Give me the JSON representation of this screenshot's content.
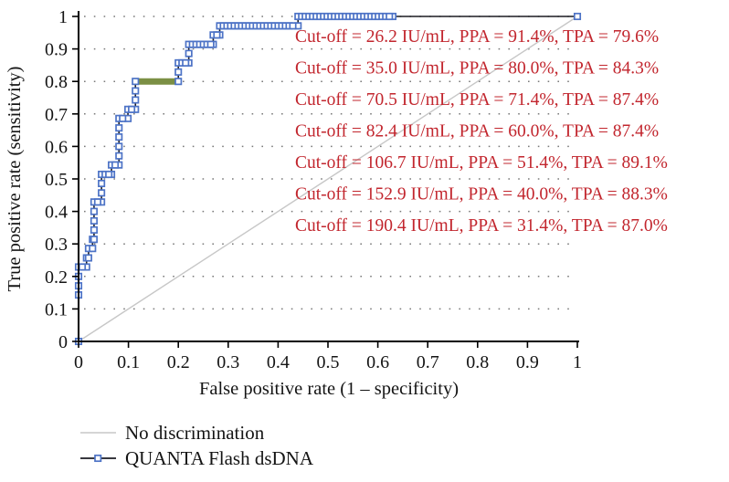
{
  "chart_data": {
    "type": "line",
    "title": "",
    "xlabel": "False positive rate (1 – specificity)",
    "ylabel": "True positive rate (sensitivity)",
    "xlim": [
      0,
      1
    ],
    "ylim": [
      0,
      1
    ],
    "grid": "horizontal-dotted",
    "legend_position": "bottom-left",
    "xticks": {
      "values": [
        0,
        0.1,
        0.2,
        0.3,
        0.4,
        0.5,
        0.6,
        0.7,
        0.8,
        0.9,
        1
      ],
      "labels": [
        "0",
        "0.1",
        "0.2",
        "0.3",
        "0.4",
        "0.5",
        "0.6",
        "0.7",
        "0.8",
        "0.9",
        "1"
      ]
    },
    "yticks": {
      "values": [
        0,
        0.1,
        0.2,
        0.3,
        0.4,
        0.5,
        0.6,
        0.7,
        0.8,
        0.9,
        1
      ],
      "labels": [
        "0",
        "0.1",
        "0.2",
        "0.3",
        "0.4",
        "0.5",
        "0.6",
        "0.7",
        "0.8",
        "0.9",
        "1"
      ]
    },
    "series": [
      {
        "name": "No discrimination",
        "type": "line",
        "color": "#c7c7c7",
        "points": [
          [
            0,
            0
          ],
          [
            1,
            1
          ]
        ]
      },
      {
        "name": "QUANTA Flash dsDNA",
        "type": "step-line",
        "line_color": "#1b1c22",
        "marker": "square",
        "marker_color": "#4d73c6",
        "marker_fill": "#ffffff",
        "points": [
          [
            0,
            0
          ],
          [
            0,
            0.143
          ],
          [
            0,
            0.171
          ],
          [
            0,
            0.2
          ],
          [
            0,
            0.229
          ],
          [
            0.016,
            0.229
          ],
          [
            0.016,
            0.257
          ],
          [
            0.02,
            0.257
          ],
          [
            0.02,
            0.286
          ],
          [
            0.028,
            0.286
          ],
          [
            0.028,
            0.314
          ],
          [
            0.031,
            0.314
          ],
          [
            0.031,
            0.343
          ],
          [
            0.031,
            0.371
          ],
          [
            0.031,
            0.4
          ],
          [
            0.031,
            0.429
          ],
          [
            0.046,
            0.429
          ],
          [
            0.046,
            0.457
          ],
          [
            0.046,
            0.486
          ],
          [
            0.046,
            0.514
          ],
          [
            0.066,
            0.514
          ],
          [
            0.066,
            0.543
          ],
          [
            0.081,
            0.543
          ],
          [
            0.081,
            0.571
          ],
          [
            0.081,
            0.6
          ],
          [
            0.081,
            0.629
          ],
          [
            0.081,
            0.657
          ],
          [
            0.081,
            0.686
          ],
          [
            0.099,
            0.686
          ],
          [
            0.099,
            0.714
          ],
          [
            0.114,
            0.714
          ],
          [
            0.114,
            0.743
          ],
          [
            0.114,
            0.771
          ],
          [
            0.114,
            0.8
          ],
          [
            0.2,
            0.8
          ],
          [
            0.2,
            0.829
          ],
          [
            0.2,
            0.857
          ],
          [
            0.221,
            0.857
          ],
          [
            0.221,
            0.886
          ],
          [
            0.221,
            0.914
          ],
          [
            0.27,
            0.914
          ],
          [
            0.27,
            0.943
          ],
          [
            0.283,
            0.943
          ],
          [
            0.283,
            0.971
          ],
          [
            0.44,
            0.971
          ],
          [
            0.44,
            1
          ],
          [
            0.63,
            1
          ],
          [
            1,
            1
          ]
        ]
      }
    ],
    "highlight_segment": {
      "color": "#7b8f44",
      "y": 0.8,
      "x_from": 0.114,
      "x_to": 0.2
    },
    "annotation_color": "#c2262e",
    "annotations": [
      "Cut-off = 26.2 IU/mL, PPA = 91.4%, TPA = 79.6%",
      "Cut-off = 35.0 IU/mL, PPA = 80.0%, TPA = 84.3%",
      "Cut-off = 70.5 IU/mL, PPA = 71.4%, TPA = 87.4%",
      "Cut-off = 82.4 IU/mL, PPA = 60.0%, TPA = 87.4%",
      "Cut-off = 106.7 IU/mL, PPA = 51.4%, TPA = 89.1%",
      "Cut-off = 152.9 IU/mL, PPA = 40.0%, TPA = 88.3%",
      "Cut-off = 190.4 IU/mL, PPA = 31.4%, TPA = 87.0%"
    ]
  }
}
